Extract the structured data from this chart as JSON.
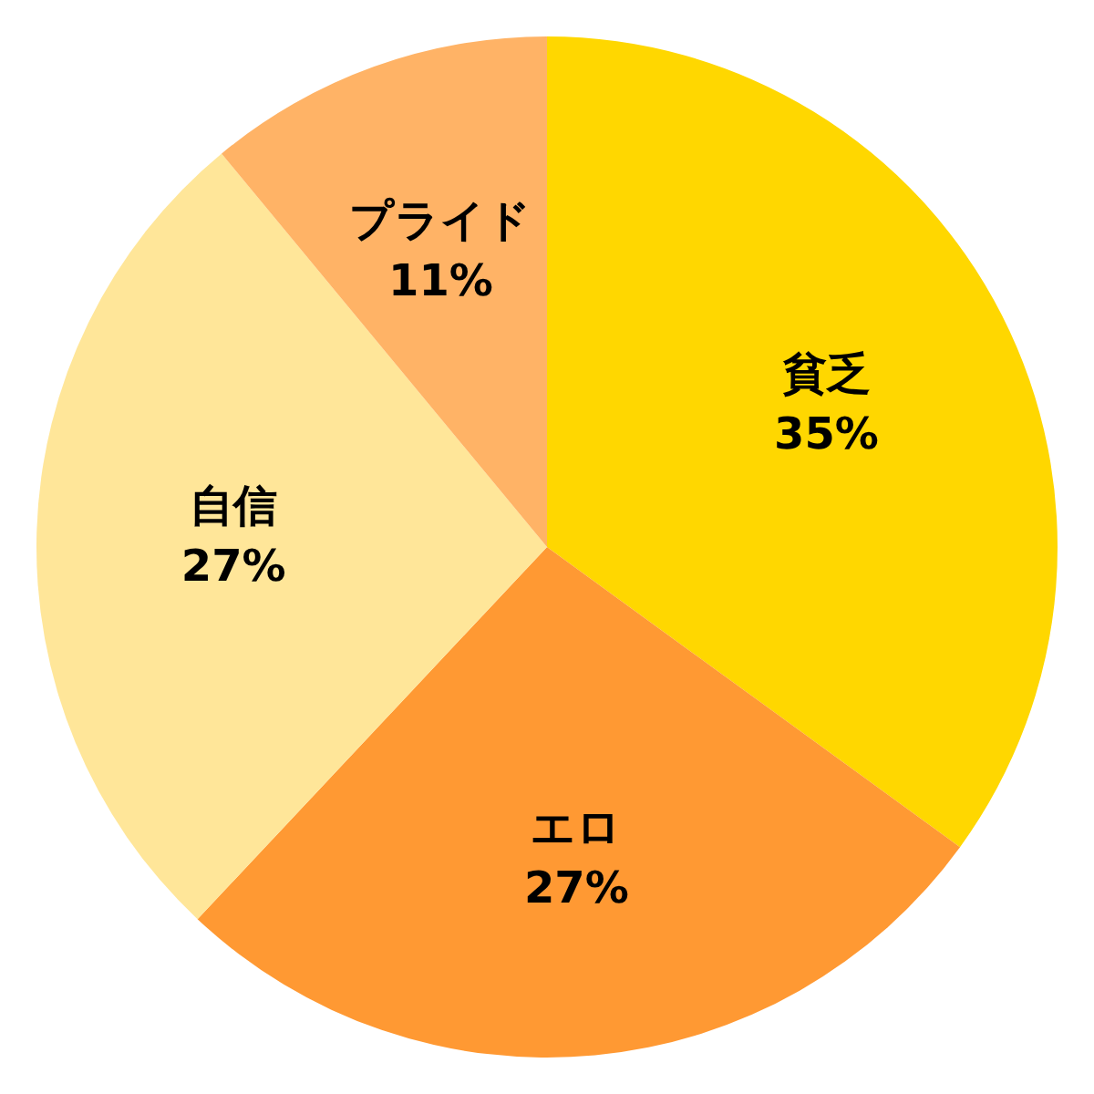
{
  "chart_data": {
    "type": "pie",
    "categories": [
      "貧乏",
      "エロ",
      "自信",
      "プライド"
    ],
    "values": [
      35,
      27,
      27,
      11
    ],
    "colors": [
      "#ffd700",
      "#ff9933",
      "#ffe699",
      "#ffb366"
    ],
    "value_labels": [
      "35%",
      "27%",
      "27%",
      "11%"
    ]
  }
}
